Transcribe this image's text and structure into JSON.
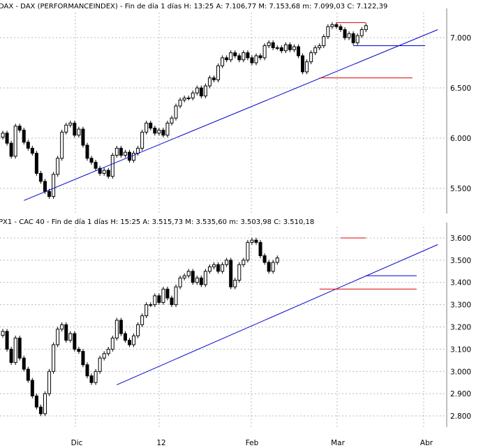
{
  "colors": {
    "background": "#ffffff",
    "grid": "#b8b8b8",
    "candle_up_fill": "#ffffff",
    "candle_down_fill": "#000000",
    "candle_outline": "#000000",
    "trendline": "#0000cc",
    "support_line": "#0000cc",
    "resistance_line": "#dd0000"
  },
  "x_axis": {
    "labels": [
      "Dic",
      "12",
      "Feb",
      "Mar",
      "Abr"
    ]
  },
  "chart_data": [
    {
      "type": "candlestick",
      "title": "DAX - DAX (PERFORMANCEINDEX) - Fin de día 1 días H: 13:25  A: 7.106,77  M: 7.153,68  m: 7.099,03  C: 7.122,39",
      "ylim": [
        5250,
        7250
      ],
      "y_ticks": [
        5500,
        6000,
        6500,
        7000
      ],
      "y_tick_labels": [
        "5.500",
        "6.000",
        "6.500",
        "7.000"
      ],
      "grid": true,
      "closes": [
        6050,
        5950,
        5820,
        6120,
        6080,
        5960,
        5900,
        5850,
        5650,
        5570,
        5470,
        5420,
        5640,
        5800,
        6060,
        6130,
        6150,
        6030,
        6090,
        5930,
        5800,
        5760,
        5700,
        5650,
        5680,
        5620,
        5830,
        5900,
        5830,
        5860,
        5780,
        5850,
        5900,
        6060,
        6150,
        6100,
        6050,
        6080,
        6030,
        6150,
        6200,
        6320,
        6380,
        6400,
        6400,
        6450,
        6500,
        6420,
        6520,
        6600,
        6580,
        6720,
        6800,
        6780,
        6850,
        6820,
        6780,
        6850,
        6800,
        6750,
        6820,
        6800,
        6920,
        6950,
        6900,
        6900,
        6870,
        6930,
        6880,
        6910,
        6820,
        6660,
        6760,
        6850,
        6900,
        6920,
        7010,
        7110,
        7130,
        7110,
        7080,
        7000,
        7040,
        6950,
        7020,
        7080,
        7120
      ],
      "trendline": {
        "from": [
          5,
          5380
        ],
        "to": [
          103,
          7080
        ]
      },
      "support": {
        "from_index": 83,
        "to_index": 100,
        "value": 6920
      },
      "resistances": [
        {
          "from_index": 75,
          "to_index": 97,
          "value": 6600
        },
        {
          "from_index": 79,
          "to_index": 86,
          "value": 7150
        }
      ]
    },
    {
      "type": "candlestick",
      "title": "PX1 - CAC 40 - Fin de día 1 días H: 15:25  A: 3.515,73  M: 3.535,60  m: 3.503,98  C: 3.510,18",
      "ylim": [
        2750,
        3650
      ],
      "y_ticks": [
        2800,
        2900,
        3000,
        3100,
        3200,
        3300,
        3400,
        3500,
        3600
      ],
      "y_tick_labels": [
        "2.800",
        "2.900",
        "3.000",
        "3.100",
        "3.200",
        "3.300",
        "3.400",
        "3.500",
        "3.600"
      ],
      "grid": true,
      "closes": [
        3180,
        3100,
        3040,
        3150,
        3060,
        3010,
        2960,
        2890,
        2840,
        2810,
        2900,
        3000,
        3120,
        3190,
        3210,
        3140,
        3170,
        3100,
        3090,
        3030,
        2980,
        2950,
        3000,
        3060,
        3080,
        3100,
        3150,
        3230,
        3170,
        3140,
        3120,
        3160,
        3210,
        3250,
        3300,
        3300,
        3340,
        3310,
        3370,
        3330,
        3300,
        3380,
        3420,
        3430,
        3450,
        3400,
        3420,
        3390,
        3450,
        3470,
        3480,
        3450,
        3480,
        3500,
        3380,
        3410,
        3480,
        3500,
        3580,
        3590,
        3580,
        3520,
        3490,
        3450,
        3490,
        3510
      ],
      "trendline": {
        "from": [
          27,
          2940
        ],
        "to": [
          103,
          3570
        ]
      },
      "support": {
        "from_index": 86,
        "to_index": 98,
        "value": 3430
      },
      "resistances": [
        {
          "from_index": 75,
          "to_index": 98,
          "value": 3370
        },
        {
          "from_index": 80,
          "to_index": 86,
          "value": 3600
        }
      ]
    }
  ]
}
